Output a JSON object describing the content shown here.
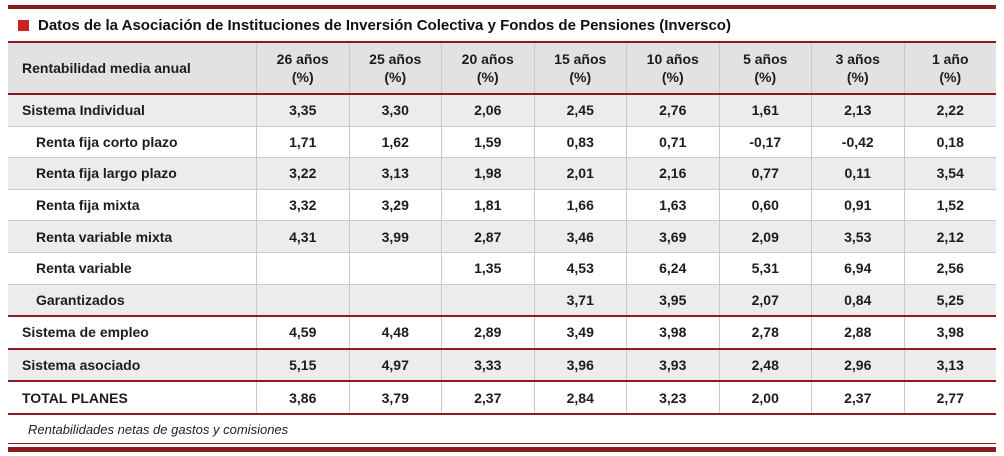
{
  "title": "Datos de la Asociación de Instituciones de Inversión Colectiva y Fondos de Pensiones (Inversco)",
  "colors": {
    "accent_red": "#cf2026",
    "rule_red": "#8a1a1e",
    "shade_gray": "#ececec",
    "header_gray": "#e2e2e2"
  },
  "chart_data": {
    "type": "table",
    "title": "Datos de la Asociación de Instituciones de Inversión Colectiva y Fondos de Pensiones (Inversco)",
    "corner_label": "Rentabilidad media anual",
    "columns": [
      "26 años\n(%)",
      "25 años\n(%)",
      "20 años\n(%)",
      "15 años\n(%)",
      "10 años\n(%)",
      "5 años\n(%)",
      "3 años\n(%)",
      "1 año\n(%)"
    ],
    "rows": [
      {
        "label": "Sistema Individual",
        "values": [
          "3,35",
          "3,30",
          "2,06",
          "2,45",
          "2,76",
          "1,61",
          "2,13",
          "2,22"
        ]
      },
      {
        "label": "Renta fija corto plazo",
        "values": [
          "1,71",
          "1,62",
          "1,59",
          "0,83",
          "0,71",
          "-0,17",
          "-0,42",
          "0,18"
        ]
      },
      {
        "label": "Renta fija largo plazo",
        "values": [
          "3,22",
          "3,13",
          "1,98",
          "2,01",
          "2,16",
          "0,77",
          "0,11",
          "3,54"
        ]
      },
      {
        "label": "Renta fija mixta",
        "values": [
          "3,32",
          "3,29",
          "1,81",
          "1,66",
          "1,63",
          "0,60",
          "0,91",
          "1,52"
        ]
      },
      {
        "label": "Renta variable mixta",
        "values": [
          "4,31",
          "3,99",
          "2,87",
          "3,46",
          "3,69",
          "2,09",
          "3,53",
          "2,12"
        ]
      },
      {
        "label": "Renta variable",
        "values": [
          "",
          "",
          "1,35",
          "4,53",
          "6,24",
          "5,31",
          "6,94",
          "2,56"
        ]
      },
      {
        "label": "Garantizados",
        "values": [
          "",
          "",
          "",
          "3,71",
          "3,95",
          "2,07",
          "0,84",
          "5,25"
        ]
      },
      {
        "label": "Sistema de empleo",
        "values": [
          "4,59",
          "4,48",
          "2,89",
          "3,49",
          "3,98",
          "2,78",
          "2,88",
          "3,98"
        ]
      },
      {
        "label": "Sistema asociado",
        "values": [
          "5,15",
          "4,97",
          "3,33",
          "3,96",
          "3,93",
          "2,48",
          "2,96",
          "3,13"
        ]
      },
      {
        "label": "TOTAL PLANES",
        "values": [
          "3,86",
          "3,79",
          "2,37",
          "2,84",
          "3,23",
          "2,00",
          "2,37",
          "2,77"
        ]
      }
    ],
    "footnote": "Rentabilidades netas de gastos y comisiones"
  }
}
